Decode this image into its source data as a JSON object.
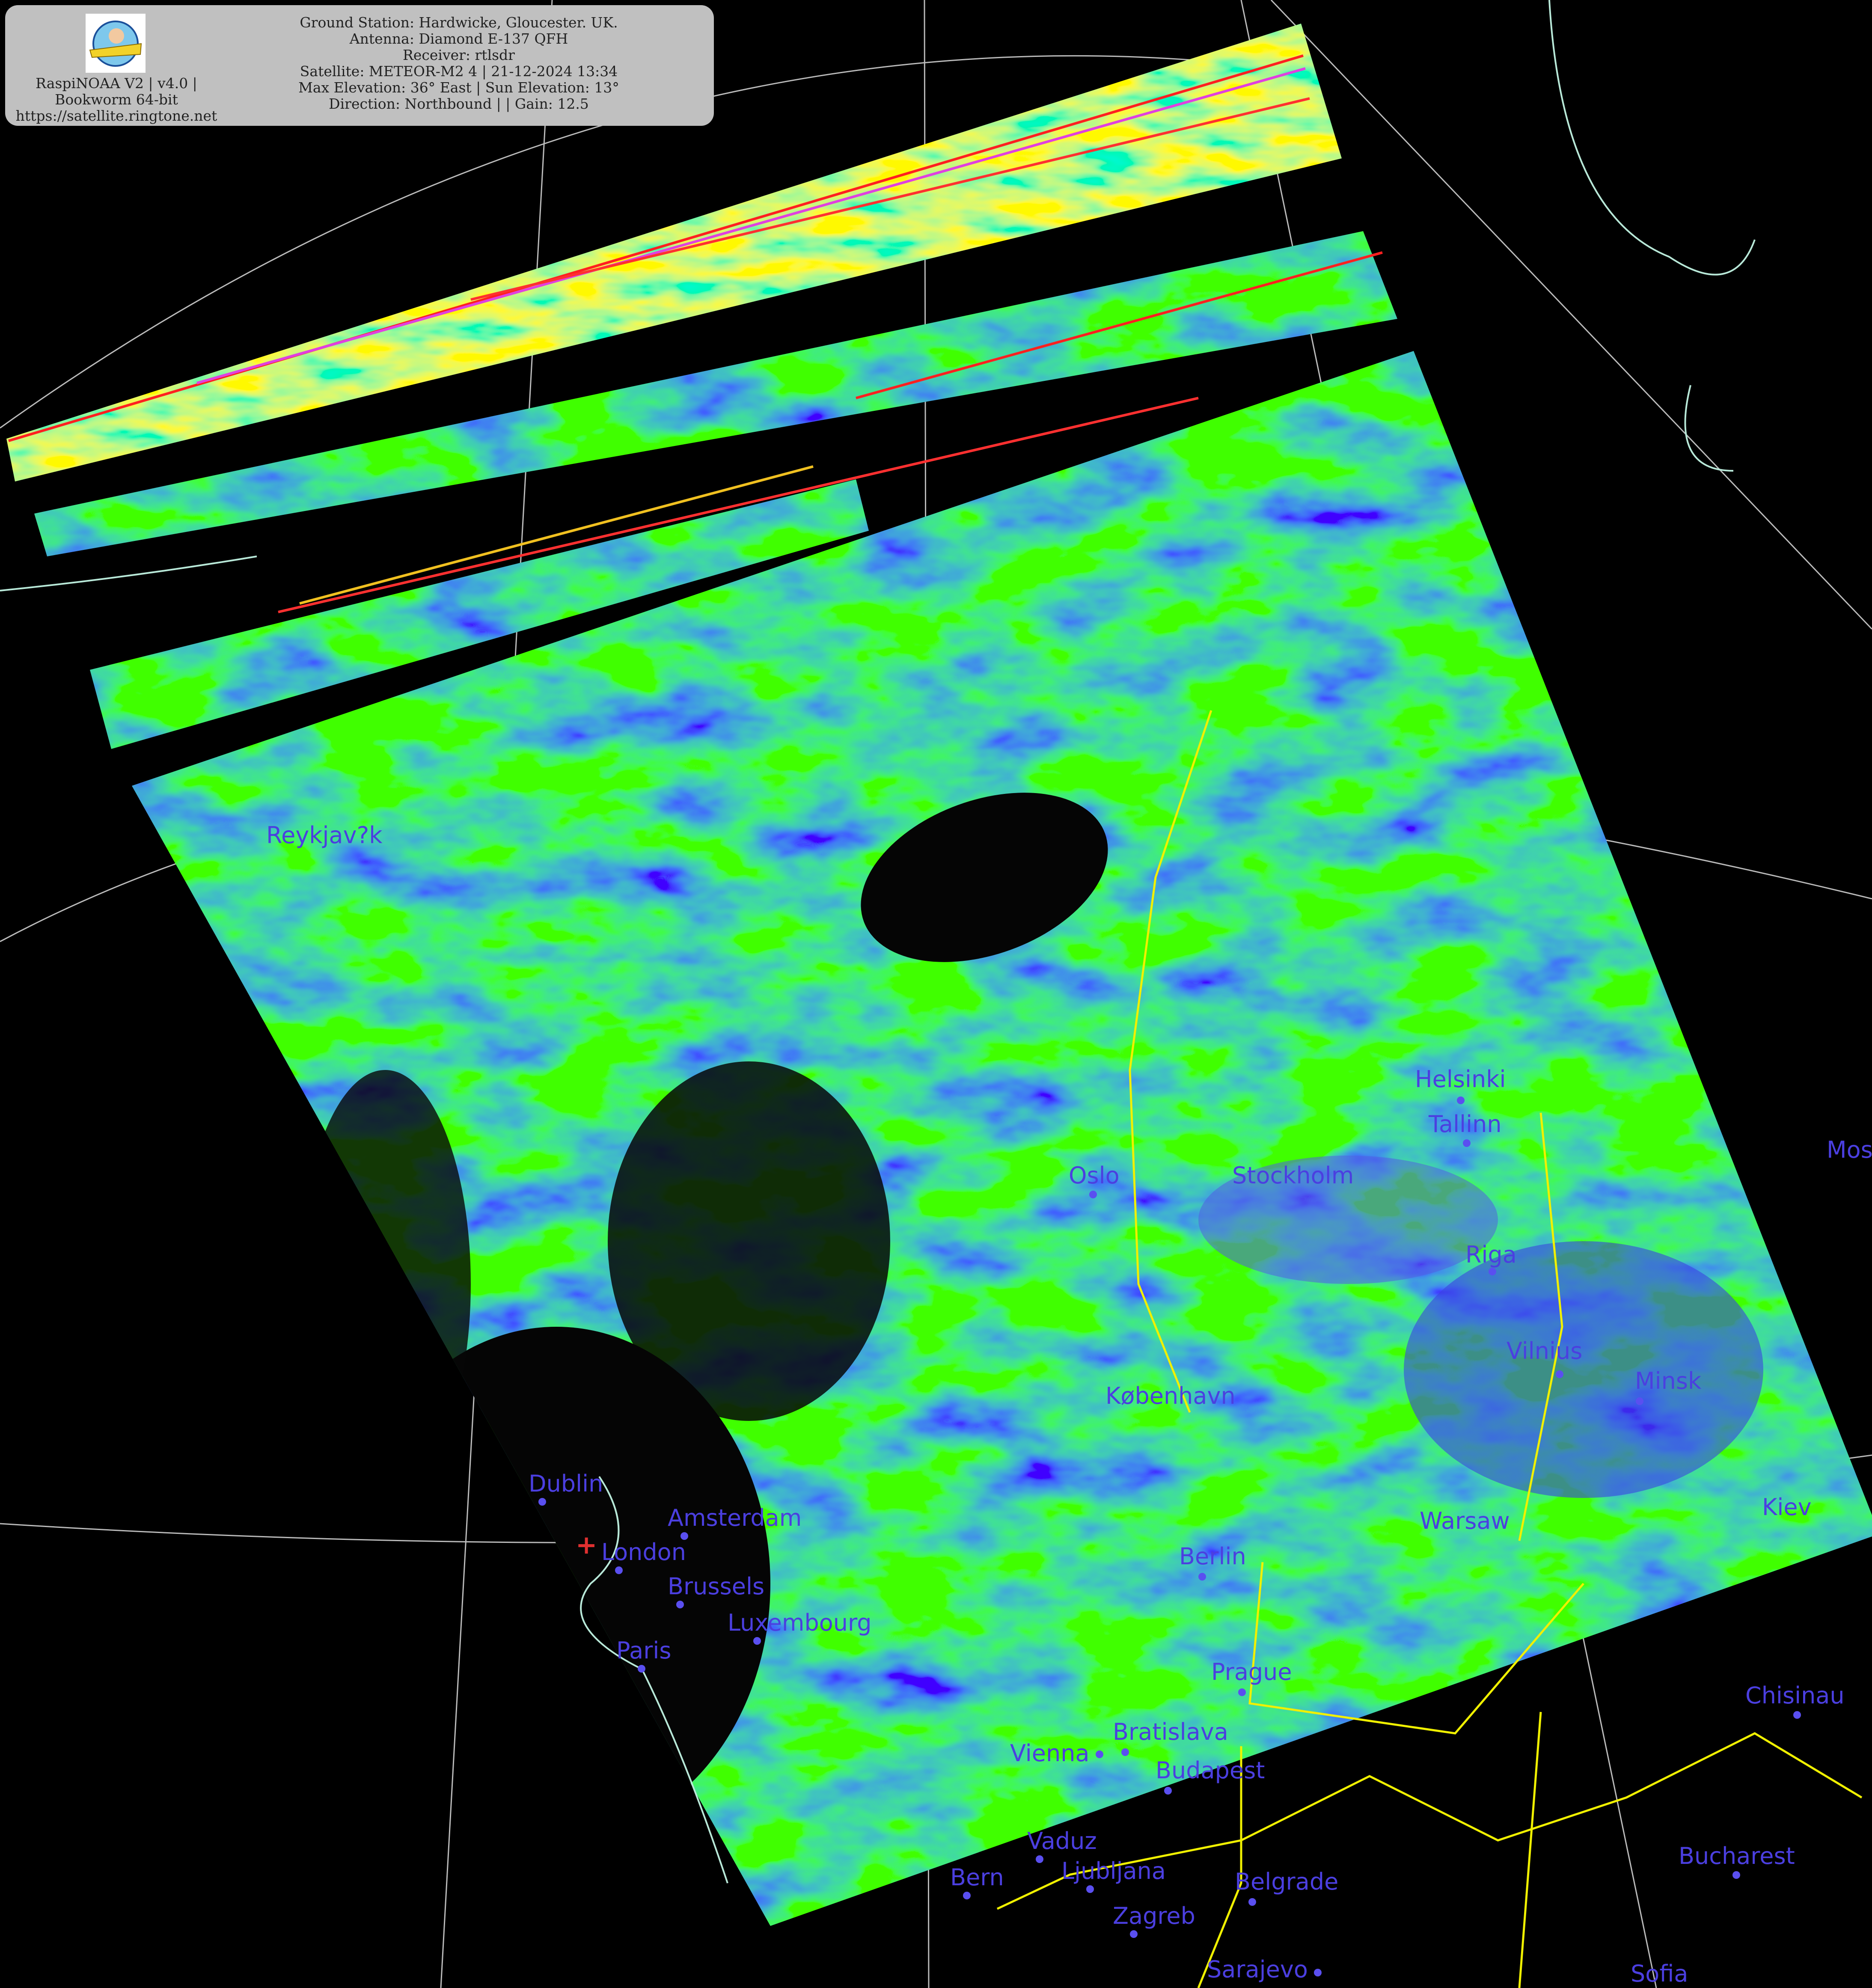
{
  "header": {
    "left_lines": [
      "RaspiNOAA V2 | v4.0 |",
      "Bookworm 64-bit",
      "https://satellite.ringtone.net"
    ],
    "right_lines": [
      "Ground Station: Hardwicke, Gloucester. UK.",
      "Antenna: Diamond E-137 QFH",
      "Receiver: rtlsdr",
      "Satellite: METEOR-M2 4 | 21-12-2024 13:34",
      "Max Elevation: 36° East | Sun Elevation: 13°",
      "Direction: Northbound | | Gain: 12.5"
    ],
    "logo": "ground station logo (cartoon pilot on yellow plane)"
  },
  "cities": [
    "Reykjav?k",
    "Oslo",
    "Stockholm",
    "Helsinki",
    "Tallinn",
    "Riga",
    "Vilnius",
    "Minsk",
    "Mos",
    "Kiev",
    "Warsaw",
    "Berlin",
    "Prague",
    "København",
    "Dublin",
    "London",
    "Amsterdam",
    "Brussels",
    "Luxembourg",
    "Paris",
    "Bern",
    "Vaduz",
    "Ljubljana",
    "Zagreb",
    "Vienna",
    "Bratislava",
    "Budapest",
    "Belgrade",
    "Sarajevo",
    "Sofia",
    "Bucharest",
    "Chisinau"
  ],
  "colors": {
    "city_label": "#4b3fe0",
    "borders": "#f0f000",
    "coastlines": "#b8e8d8",
    "graticule": "#cccccc",
    "station_marker": "#e03030"
  },
  "station_marker": "red-cross"
}
